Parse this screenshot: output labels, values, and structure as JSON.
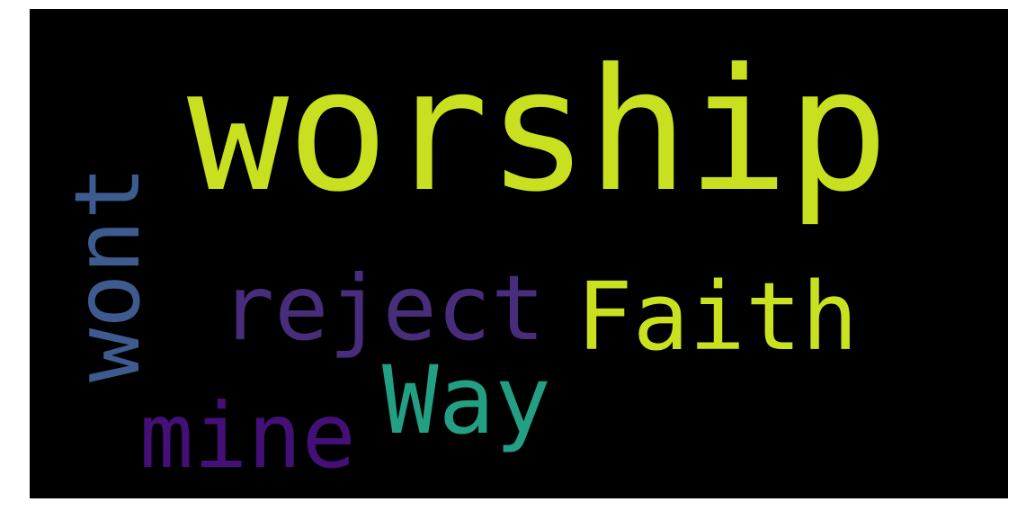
{
  "background_color": "#000000",
  "words": {
    "worship": {
      "text": "worship",
      "color": "#c8e020"
    },
    "faith": {
      "text": "Faith",
      "color": "#cae11f"
    },
    "reject": {
      "text": "reject",
      "color": "#472d7b"
    },
    "way": {
      "text": "Way",
      "color": "#23a083"
    },
    "mine": {
      "text": "mine",
      "color": "#440f76"
    },
    "wont": {
      "text": "wont",
      "color": "#3e5b8f"
    }
  }
}
